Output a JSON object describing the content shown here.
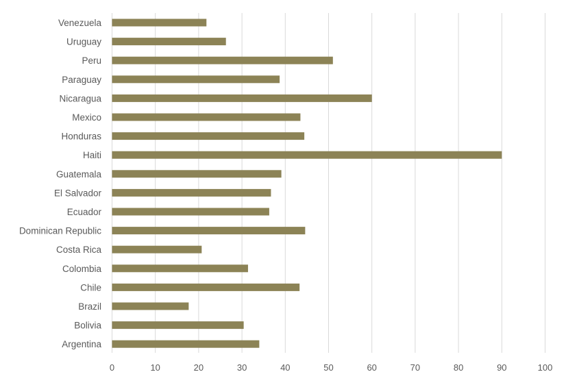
{
  "chart_data": {
    "type": "bar",
    "orientation": "horizontal",
    "categories": [
      "Venezuela",
      "Uruguay",
      "Peru",
      "Paraguay",
      "Nicaragua",
      "Mexico",
      "Honduras",
      "Haiti",
      "Guatemala",
      "El Salvador",
      "Ecuador",
      "Dominican Republic",
      "Costa Rica",
      "Colombia",
      "Chile",
      "Brazil",
      "Bolivia",
      "Argentina"
    ],
    "values": [
      21.8,
      26.3,
      51,
      38.7,
      60,
      43.5,
      44.4,
      90,
      39.1,
      36.7,
      36.3,
      44.6,
      20.7,
      31.4,
      43.3,
      17.7,
      30.4,
      34
    ],
    "xlim": [
      0,
      100
    ],
    "xticks": [
      0,
      10,
      20,
      30,
      40,
      50,
      60,
      70,
      80,
      90,
      100
    ],
    "title": "",
    "xlabel": "",
    "ylabel": "",
    "grid": "vertical",
    "legend": "none",
    "colors": {
      "bar": "#8c8356",
      "grid": "#d9d9d9",
      "text": "#595959"
    }
  }
}
